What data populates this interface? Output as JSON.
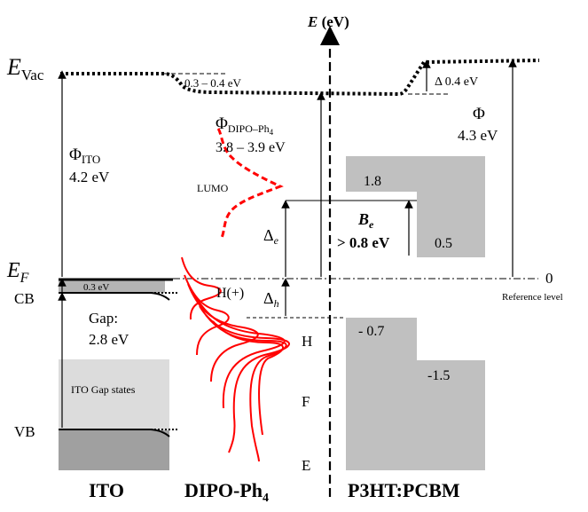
{
  "axis": {
    "label": "E",
    "unit": "(eV)"
  },
  "levels": {
    "evac_main": "E",
    "evac_sub": "Vac",
    "ef_main": "E",
    "ef_sub": "F",
    "cb": "CB",
    "vb": "VB",
    "zero": "0",
    "reference": "Reference level"
  },
  "ito": {
    "phi_main": "Φ",
    "phi_sub": "ITO",
    "phi_value": "4.2 eV",
    "cb_offset": "0.3 eV",
    "gap_label": "Gap:",
    "gap_value": "2.8 eV",
    "gap_states": "ITO Gap states",
    "name": "ITO"
  },
  "dipo": {
    "shift": "0.3 – 0.4 eV",
    "phi_main": "Φ",
    "phi_sub": "DIPO–Ph",
    "phi_subsub": "4",
    "phi_value": "3.8 – 3.9 eV",
    "lumo": "LUMO",
    "h_plus": "H(+)",
    "h": "H",
    "f": "F",
    "e": "E",
    "delta_e_main": "Δ",
    "delta_e_sub": "e",
    "delta_h_main": "Δ",
    "delta_h_sub": "h",
    "name_main": "DIPO-Ph",
    "name_sub": "4"
  },
  "p3ht": {
    "delta_vac": "Δ 0.4 eV",
    "phi_main": "Φ",
    "phi_value": "4.3 eV",
    "lumo_top": "1.8",
    "lumo_bottom": "0.5",
    "be_main": "B",
    "be_sub": "e",
    "be_value": "> 0.8 eV",
    "homo_top": "- 0.7",
    "homo_bottom": "-1.5",
    "name": "P3HT:PCBM"
  },
  "colors": {
    "dos": "#ff0000",
    "ito_band": "#b4b4b4",
    "ito_gap": "#dcdcdc",
    "ito_vb": "#a0a0a0",
    "p3ht_block": "#c0c0c0"
  }
}
